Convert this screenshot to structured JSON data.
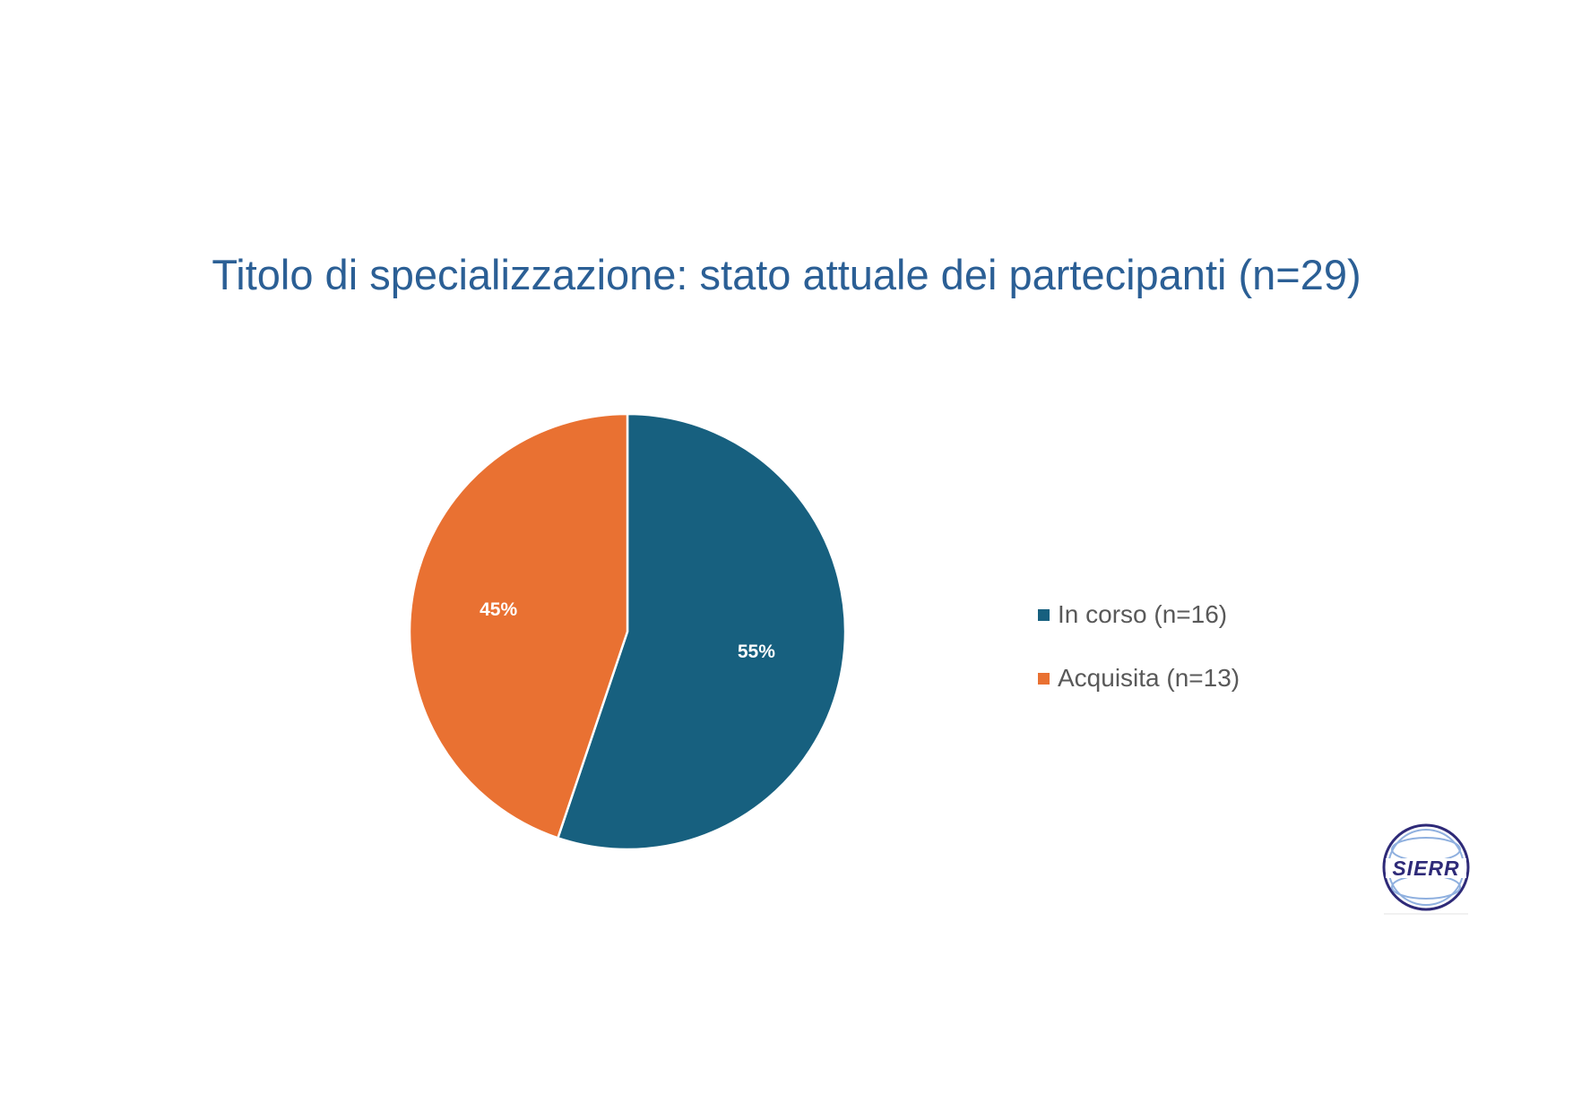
{
  "chart_data": {
    "type": "pie",
    "title": "Titolo di specializzazione: stato attuale dei partecipanti (n=29)",
    "slices": [
      {
        "label": "In corso (n=16)",
        "value": 16,
        "percent_label": "55%",
        "color": "#17607f"
      },
      {
        "label": "Acquisita (n=13)",
        "value": 13,
        "percent_label": "45%",
        "color": "#e97132"
      }
    ],
    "start_angle_deg": 0,
    "direction": "clockwise",
    "legend_position": "right"
  },
  "colors": {
    "title": "#2b5f95",
    "legend_text": "#595959",
    "slice_border": "#ffffff"
  },
  "logo": {
    "name": "sierr-logo",
    "text": "SIERR",
    "color": "#2e2a78"
  }
}
